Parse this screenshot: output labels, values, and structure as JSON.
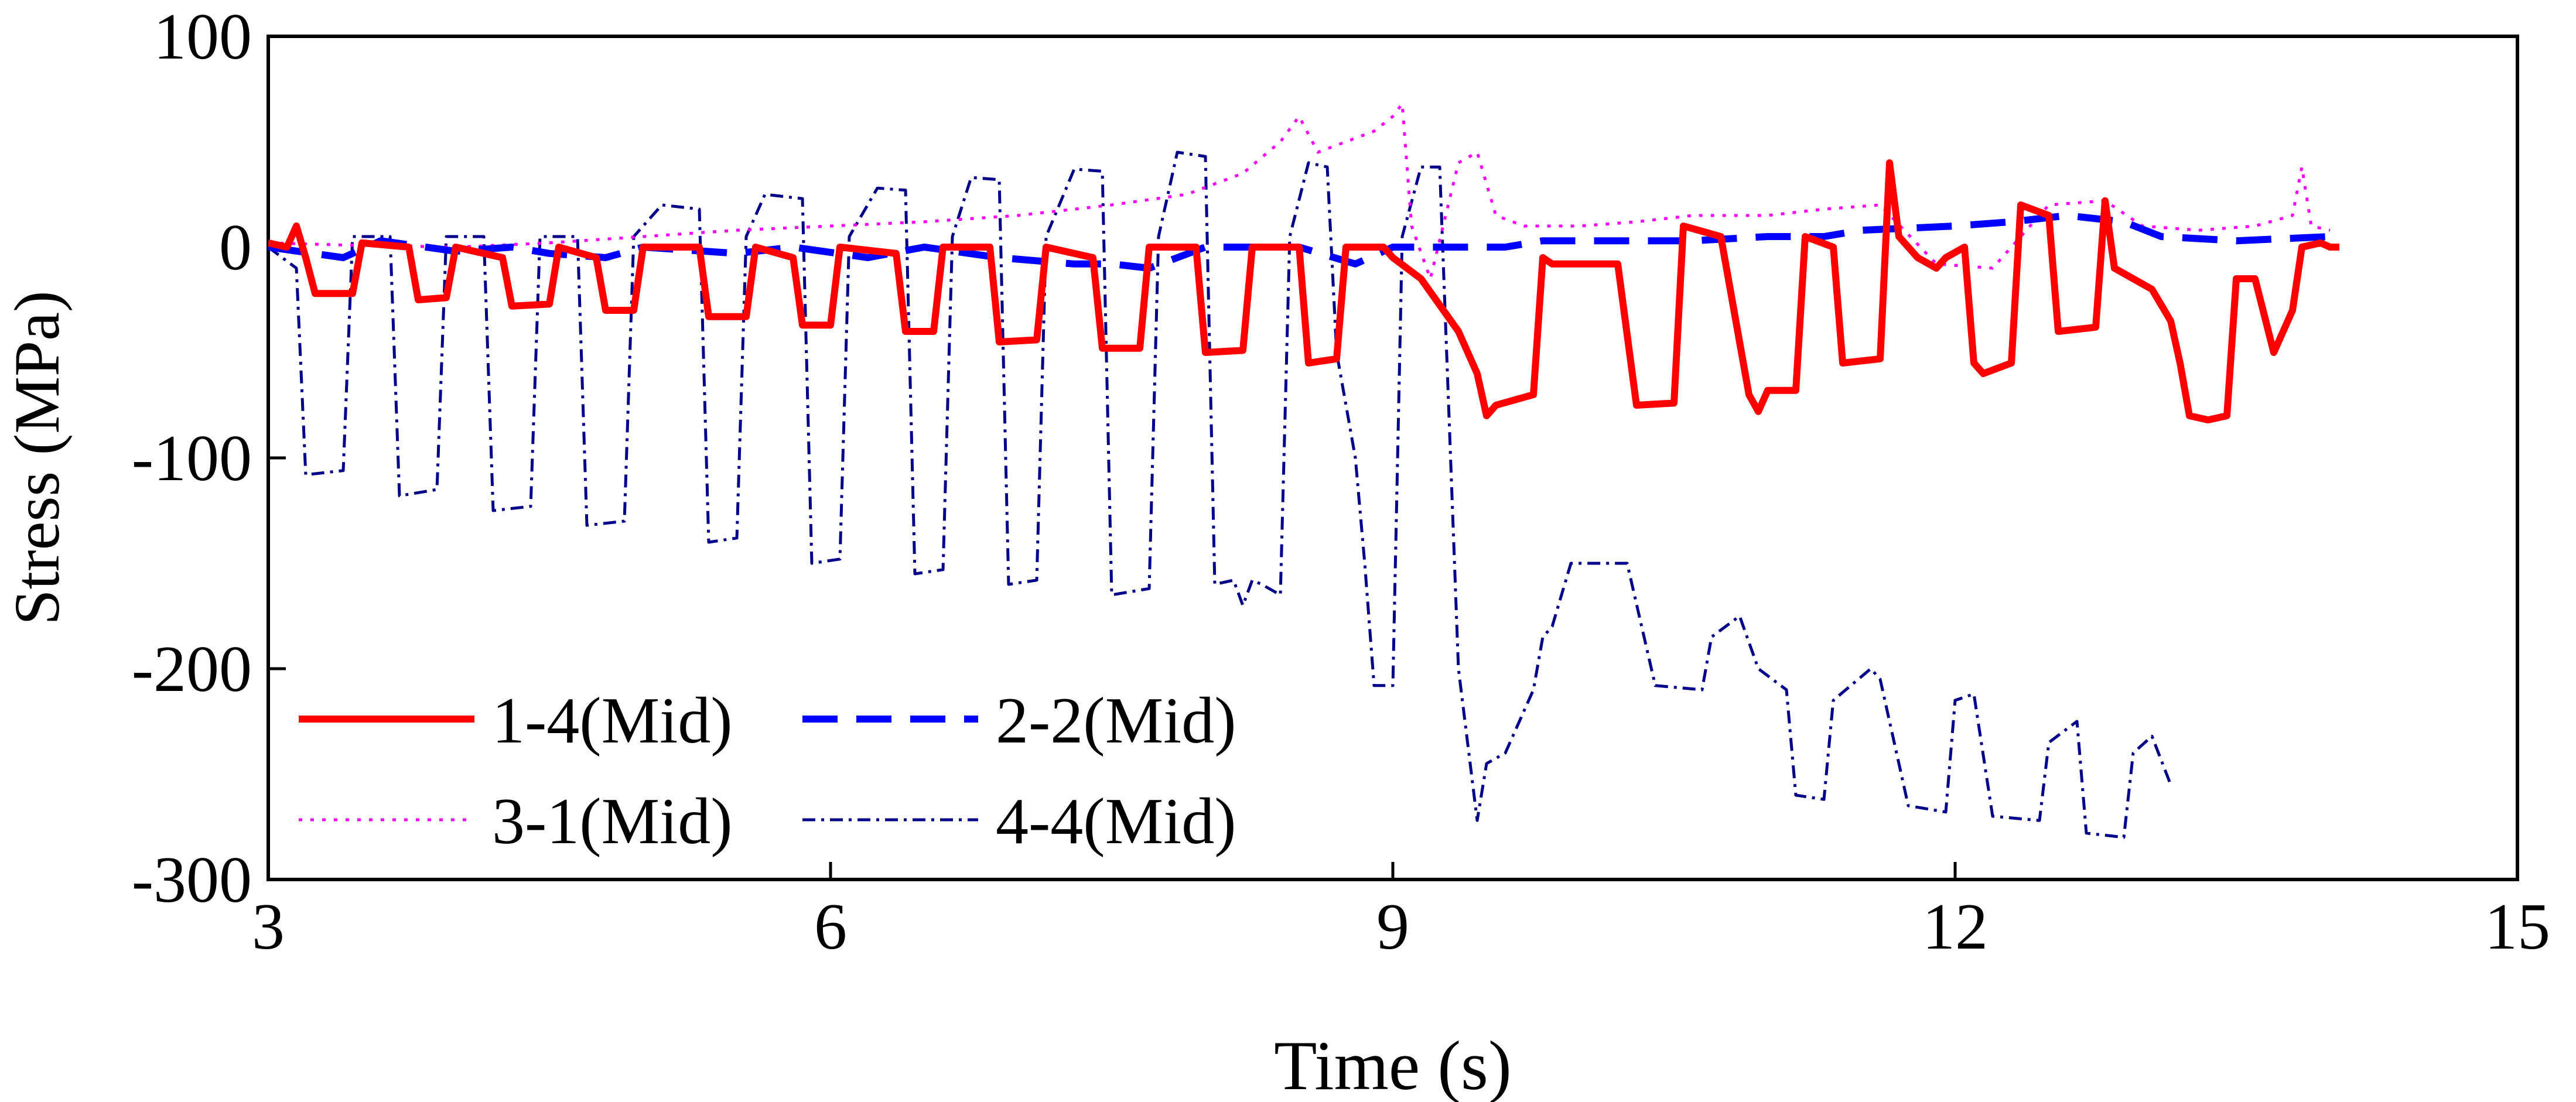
{
  "chart_data": {
    "type": "line",
    "title": "",
    "xlabel": "Time (s)",
    "ylabel": "Stress (MPa)",
    "xlim": [
      3,
      15
    ],
    "ylim": [
      -300,
      100
    ],
    "xticks": [
      3,
      6,
      9,
      12,
      15
    ],
    "yticks": [
      -300,
      -200,
      -100,
      0,
      100
    ],
    "xtick_labels": [
      "3",
      "6",
      "9",
      "12",
      "15"
    ],
    "ytick_labels": [
      "-300",
      "-200",
      "-100",
      "0",
      "100"
    ],
    "grid": false,
    "legend_position": "bottom-left",
    "series": [
      {
        "name": "1-4(Mid)",
        "color": "#ff0000",
        "style": "solid",
        "points": [
          [
            3.0,
            2
          ],
          [
            3.1,
            0
          ],
          [
            3.15,
            10
          ],
          [
            3.2,
            -5
          ],
          [
            3.25,
            -22
          ],
          [
            3.45,
            -22
          ],
          [
            3.5,
            2
          ],
          [
            3.75,
            0
          ],
          [
            3.8,
            -25
          ],
          [
            3.95,
            -24
          ],
          [
            4.0,
            0
          ],
          [
            4.25,
            -5
          ],
          [
            4.3,
            -28
          ],
          [
            4.5,
            -27
          ],
          [
            4.55,
            0
          ],
          [
            4.75,
            -5
          ],
          [
            4.8,
            -30
          ],
          [
            4.95,
            -30
          ],
          [
            5.0,
            0
          ],
          [
            5.3,
            0
          ],
          [
            5.35,
            -33
          ],
          [
            5.55,
            -33
          ],
          [
            5.6,
            0
          ],
          [
            5.8,
            -5
          ],
          [
            5.85,
            -37
          ],
          [
            6.0,
            -37
          ],
          [
            6.05,
            0
          ],
          [
            6.35,
            -3
          ],
          [
            6.4,
            -40
          ],
          [
            6.55,
            -40
          ],
          [
            6.6,
            0
          ],
          [
            6.85,
            0
          ],
          [
            6.9,
            -45
          ],
          [
            7.1,
            -44
          ],
          [
            7.15,
            0
          ],
          [
            7.4,
            -5
          ],
          [
            7.45,
            -48
          ],
          [
            7.65,
            -48
          ],
          [
            7.7,
            0
          ],
          [
            7.95,
            0
          ],
          [
            8.0,
            -50
          ],
          [
            8.2,
            -49
          ],
          [
            8.25,
            0
          ],
          [
            8.5,
            0
          ],
          [
            8.55,
            -55
          ],
          [
            8.7,
            -53
          ],
          [
            8.75,
            0
          ],
          [
            8.95,
            0
          ],
          [
            9.0,
            -5
          ],
          [
            9.15,
            -15
          ],
          [
            9.35,
            -40
          ],
          [
            9.45,
            -60
          ],
          [
            9.5,
            -80
          ],
          [
            9.55,
            -75
          ],
          [
            9.75,
            -70
          ],
          [
            9.8,
            -5
          ],
          [
            9.85,
            -8
          ],
          [
            10.2,
            -8
          ],
          [
            10.3,
            -75
          ],
          [
            10.5,
            -74
          ],
          [
            10.55,
            10
          ],
          [
            10.75,
            5
          ],
          [
            10.9,
            -70
          ],
          [
            10.95,
            -78
          ],
          [
            11.0,
            -68
          ],
          [
            11.15,
            -68
          ],
          [
            11.2,
            5
          ],
          [
            11.35,
            0
          ],
          [
            11.4,
            -55
          ],
          [
            11.6,
            -53
          ],
          [
            11.65,
            40
          ],
          [
            11.7,
            5
          ],
          [
            11.8,
            -5
          ],
          [
            11.9,
            -10
          ],
          [
            11.95,
            -5
          ],
          [
            12.05,
            0
          ],
          [
            12.1,
            -55
          ],
          [
            12.15,
            -60
          ],
          [
            12.3,
            -55
          ],
          [
            12.35,
            20
          ],
          [
            12.5,
            15
          ],
          [
            12.55,
            -40
          ],
          [
            12.75,
            -38
          ],
          [
            12.8,
            22
          ],
          [
            12.85,
            -10
          ],
          [
            12.95,
            -15
          ],
          [
            13.05,
            -20
          ],
          [
            13.15,
            -35
          ],
          [
            13.2,
            -55
          ],
          [
            13.25,
            -80
          ],
          [
            13.35,
            -82
          ],
          [
            13.45,
            -80
          ],
          [
            13.5,
            -15
          ],
          [
            13.6,
            -15
          ],
          [
            13.7,
            -50
          ],
          [
            13.75,
            -40
          ],
          [
            13.8,
            -30
          ],
          [
            13.85,
            0
          ],
          [
            13.95,
            2
          ],
          [
            14.0,
            0
          ],
          [
            14.05,
            0
          ]
        ]
      },
      {
        "name": "2-2(Mid)",
        "color": "#0000ff",
        "style": "dashed",
        "points": [
          [
            3.0,
            0
          ],
          [
            3.4,
            -5
          ],
          [
            3.6,
            3
          ],
          [
            4.0,
            -2
          ],
          [
            4.3,
            0
          ],
          [
            4.5,
            -3
          ],
          [
            4.8,
            -5
          ],
          [
            5.0,
            0
          ],
          [
            5.5,
            -3
          ],
          [
            5.8,
            0
          ],
          [
            6.2,
            -5
          ],
          [
            6.5,
            0
          ],
          [
            6.9,
            -5
          ],
          [
            7.3,
            -8
          ],
          [
            7.5,
            -8
          ],
          [
            7.7,
            -10
          ],
          [
            8.0,
            0
          ],
          [
            8.5,
            0
          ],
          [
            8.8,
            -8
          ],
          [
            9.0,
            0
          ],
          [
            9.3,
            0
          ],
          [
            9.6,
            0
          ],
          [
            9.8,
            3
          ],
          [
            10.1,
            3
          ],
          [
            10.6,
            3
          ],
          [
            11.0,
            5
          ],
          [
            11.3,
            5
          ],
          [
            11.5,
            8
          ],
          [
            12.0,
            10
          ],
          [
            12.3,
            12
          ],
          [
            12.6,
            15
          ],
          [
            12.9,
            12
          ],
          [
            13.1,
            5
          ],
          [
            13.5,
            3
          ],
          [
            14.0,
            5
          ]
        ]
      },
      {
        "name": "3-1(Mid)",
        "color": "#ff00ff",
        "style": "dotted",
        "points": [
          [
            3.0,
            2
          ],
          [
            3.4,
            1
          ],
          [
            4.0,
            0
          ],
          [
            4.5,
            2
          ],
          [
            5.0,
            5
          ],
          [
            5.5,
            8
          ],
          [
            6.0,
            10
          ],
          [
            6.5,
            12
          ],
          [
            7.0,
            15
          ],
          [
            7.5,
            20
          ],
          [
            7.9,
            25
          ],
          [
            8.2,
            35
          ],
          [
            8.4,
            50
          ],
          [
            8.5,
            62
          ],
          [
            8.6,
            45
          ],
          [
            8.75,
            50
          ],
          [
            8.9,
            55
          ],
          [
            9.0,
            62
          ],
          [
            9.05,
            68
          ],
          [
            9.1,
            10
          ],
          [
            9.2,
            -15
          ],
          [
            9.35,
            40
          ],
          [
            9.45,
            45
          ],
          [
            9.55,
            15
          ],
          [
            9.7,
            10
          ],
          [
            10.0,
            10
          ],
          [
            10.3,
            12
          ],
          [
            10.6,
            15
          ],
          [
            11.0,
            15
          ],
          [
            11.3,
            18
          ],
          [
            11.6,
            20
          ],
          [
            11.9,
            -8
          ],
          [
            12.2,
            -10
          ],
          [
            12.5,
            20
          ],
          [
            12.8,
            22
          ],
          [
            13.0,
            10
          ],
          [
            13.3,
            8
          ],
          [
            13.6,
            10
          ],
          [
            13.8,
            15
          ],
          [
            13.85,
            38
          ],
          [
            13.9,
            10
          ],
          [
            14.0,
            8
          ]
        ]
      },
      {
        "name": "4-4(Mid)",
        "color": "#00008b",
        "style": "dashdot",
        "points": [
          [
            3.0,
            0
          ],
          [
            3.15,
            -10
          ],
          [
            3.2,
            -108
          ],
          [
            3.4,
            -106
          ],
          [
            3.45,
            5
          ],
          [
            3.65,
            5
          ],
          [
            3.7,
            -118
          ],
          [
            3.9,
            -115
          ],
          [
            3.95,
            5
          ],
          [
            4.15,
            5
          ],
          [
            4.2,
            -125
          ],
          [
            4.4,
            -123
          ],
          [
            4.45,
            5
          ],
          [
            4.65,
            5
          ],
          [
            4.7,
            -132
          ],
          [
            4.9,
            -130
          ],
          [
            4.95,
            5
          ],
          [
            5.1,
            20
          ],
          [
            5.3,
            18
          ],
          [
            5.35,
            -140
          ],
          [
            5.5,
            -138
          ],
          [
            5.55,
            5
          ],
          [
            5.65,
            25
          ],
          [
            5.85,
            23
          ],
          [
            5.9,
            -150
          ],
          [
            6.05,
            -148
          ],
          [
            6.1,
            5
          ],
          [
            6.25,
            28
          ],
          [
            6.4,
            27
          ],
          [
            6.45,
            -155
          ],
          [
            6.6,
            -153
          ],
          [
            6.65,
            5
          ],
          [
            6.75,
            33
          ],
          [
            6.9,
            32
          ],
          [
            6.95,
            -160
          ],
          [
            7.1,
            -158
          ],
          [
            7.15,
            5
          ],
          [
            7.3,
            37
          ],
          [
            7.45,
            36
          ],
          [
            7.5,
            -165
          ],
          [
            7.7,
            -162
          ],
          [
            7.75,
            5
          ],
          [
            7.85,
            45
          ],
          [
            8.0,
            43
          ],
          [
            8.05,
            -160
          ],
          [
            8.15,
            -158
          ],
          [
            8.2,
            -170
          ],
          [
            8.25,
            -158
          ],
          [
            8.3,
            -160
          ],
          [
            8.4,
            -165
          ],
          [
            8.45,
            5
          ],
          [
            8.55,
            40
          ],
          [
            8.65,
            38
          ],
          [
            8.7,
            -50
          ],
          [
            8.8,
            -100
          ],
          [
            8.85,
            -150
          ],
          [
            8.9,
            -208
          ],
          [
            9.0,
            -208
          ],
          [
            9.05,
            5
          ],
          [
            9.15,
            38
          ],
          [
            9.25,
            38
          ],
          [
            9.35,
            -200
          ],
          [
            9.45,
            -272
          ],
          [
            9.5,
            -245
          ],
          [
            9.6,
            -240
          ],
          [
            9.75,
            -210
          ],
          [
            9.8,
            -185
          ],
          [
            9.85,
            -180
          ],
          [
            9.95,
            -150
          ],
          [
            10.25,
            -150
          ],
          [
            10.4,
            -208
          ],
          [
            10.65,
            -210
          ],
          [
            10.7,
            -185
          ],
          [
            10.85,
            -175
          ],
          [
            10.95,
            -200
          ],
          [
            11.1,
            -210
          ],
          [
            11.15,
            -260
          ],
          [
            11.3,
            -262
          ],
          [
            11.35,
            -215
          ],
          [
            11.55,
            -200
          ],
          [
            11.6,
            -205
          ],
          [
            11.75,
            -265
          ],
          [
            11.95,
            -268
          ],
          [
            12.0,
            -215
          ],
          [
            12.1,
            -212
          ],
          [
            12.2,
            -270
          ],
          [
            12.45,
            -272
          ],
          [
            12.5,
            -235
          ],
          [
            12.65,
            -225
          ],
          [
            12.7,
            -278
          ],
          [
            12.9,
            -280
          ],
          [
            12.95,
            -240
          ],
          [
            13.05,
            -232
          ],
          [
            13.15,
            -255
          ]
        ]
      }
    ]
  }
}
